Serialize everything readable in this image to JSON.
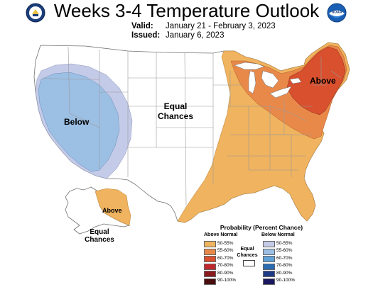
{
  "header": {
    "title": "Weeks 3-4 Temperature Outlook",
    "valid_label": "Valid:",
    "valid_value": "January 21 - February 3, 2023",
    "issued_label": "Issued:",
    "issued_value": "January 6, 2023"
  },
  "logos": {
    "left": "commerce-seal-icon",
    "right": "noaa-logo-icon",
    "right_text": "NOAA"
  },
  "map_labels": {
    "below_west": "Below",
    "equal_chances_center_1": "Equal",
    "equal_chances_center_2": "Chances",
    "above_northeast": "Above",
    "above_alaska": "Above",
    "equal_chances_alaska_1": "Equal",
    "equal_chances_alaska_2": "Chances"
  },
  "legend": {
    "title": "Probability (Percent Chance)",
    "above_header": "Above Normal",
    "below_header": "Below Normal",
    "equal_label_1": "Equal",
    "equal_label_2": "Chances",
    "above_rows": [
      {
        "label": "50-55%",
        "color": "#f0b35f"
      },
      {
        "label": "55-60%",
        "color": "#e8894a"
      },
      {
        "label": "60-70%",
        "color": "#d8502e"
      },
      {
        "label": "70-80%",
        "color": "#c1282c"
      },
      {
        "label": "80-90%",
        "color": "#8a1a20"
      },
      {
        "label": "90-100%",
        "color": "#4a0d0d"
      }
    ],
    "below_rows": [
      {
        "label": "50-55%",
        "color": "#c4cbe8"
      },
      {
        "label": "55-60%",
        "color": "#9cbfe4"
      },
      {
        "label": "60-70%",
        "color": "#5fa2d8"
      },
      {
        "label": "70-80%",
        "color": "#2b6cb3"
      },
      {
        "label": "80-90%",
        "color": "#1f3b85"
      },
      {
        "label": "90-100%",
        "color": "#1a1860"
      }
    ]
  },
  "colors": {
    "above_50_55": "#f0b35f",
    "above_55_60": "#e8894a",
    "above_60_70": "#d8502e",
    "below_50_55": "#c4cbe8",
    "below_55_60": "#9cbfe4",
    "boundary": "#9a9a9a"
  }
}
